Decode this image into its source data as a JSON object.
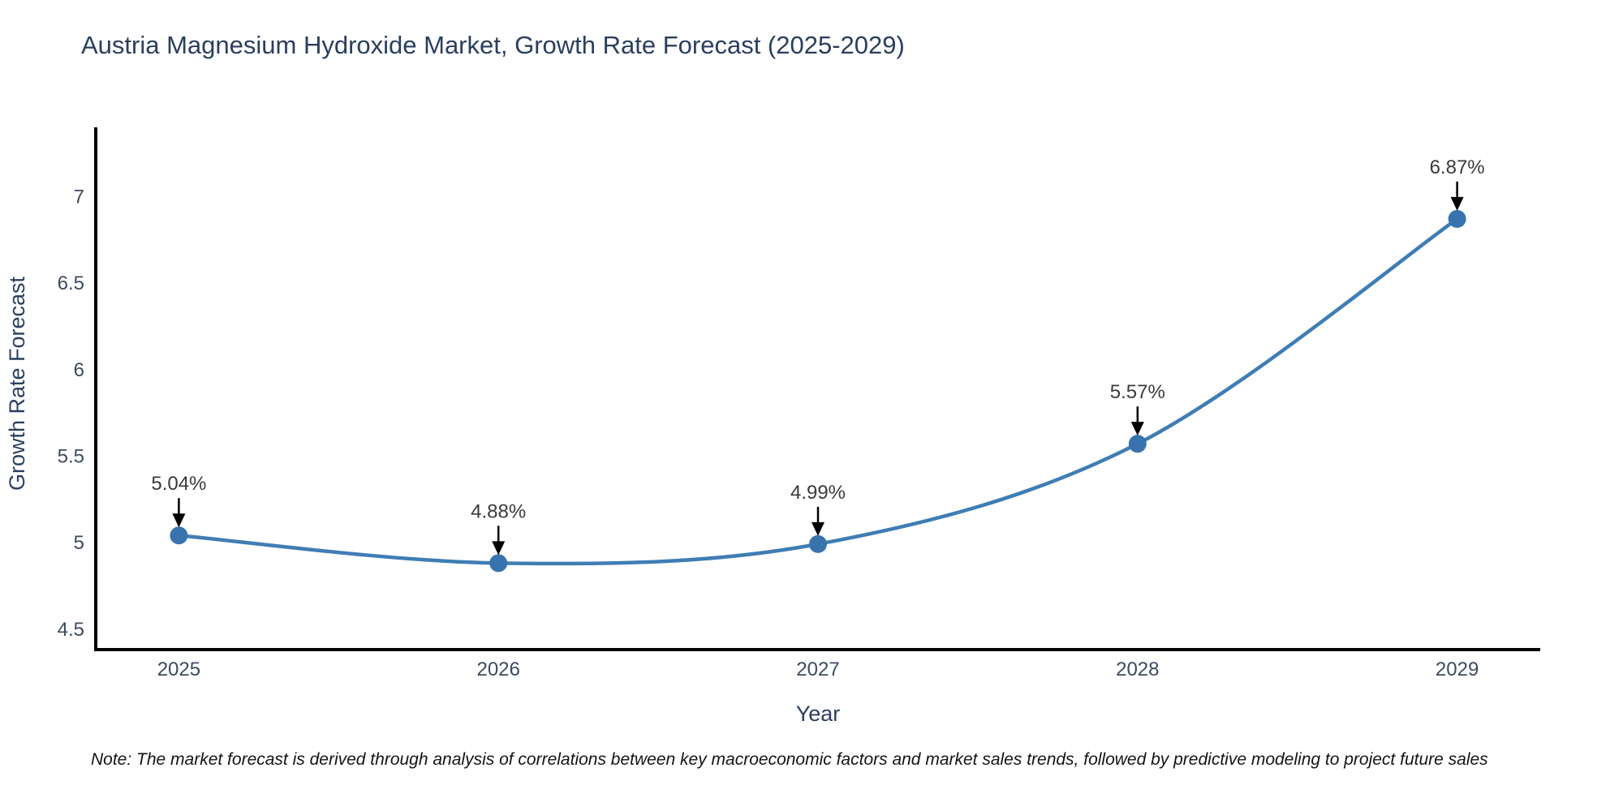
{
  "title": "Austria Magnesium Hydroxide Market, Growth Rate Forecast (2025-2029)",
  "footnote": "Note: The market forecast is derived through analysis of correlations between key macroeconomic factors and market sales trends, followed by predictive modeling to project future sales",
  "chart_data": {
    "type": "line",
    "title": "Austria Magnesium Hydroxide Market, Growth Rate Forecast (2025-2029)",
    "xlabel": "Year",
    "ylabel": "Growth Rate Forecast",
    "x": [
      2025,
      2026,
      2027,
      2028,
      2029
    ],
    "values": [
      5.04,
      4.88,
      4.99,
      5.57,
      6.87
    ],
    "point_labels": [
      "5.04%",
      "4.88%",
      "4.99%",
      "5.57%",
      "6.87%"
    ],
    "xticks": [
      2025,
      2026,
      2027,
      2028,
      2029
    ],
    "yticks": [
      4.5,
      5,
      5.5,
      6,
      6.5,
      7
    ],
    "xlim": [
      2024.74,
      2029.26
    ],
    "ylim": [
      4.38,
      7.39
    ],
    "grid": false,
    "legend": false,
    "smooth": true,
    "annotation_arrows": true,
    "colors": {
      "line": "#3f7db4",
      "marker": "#3873ae",
      "axis": "#000000",
      "arrow": "#000000",
      "title_text": "#2a3f5f",
      "tick_text": "#3c4a60",
      "annotation_text": "#3a3a3a"
    }
  }
}
